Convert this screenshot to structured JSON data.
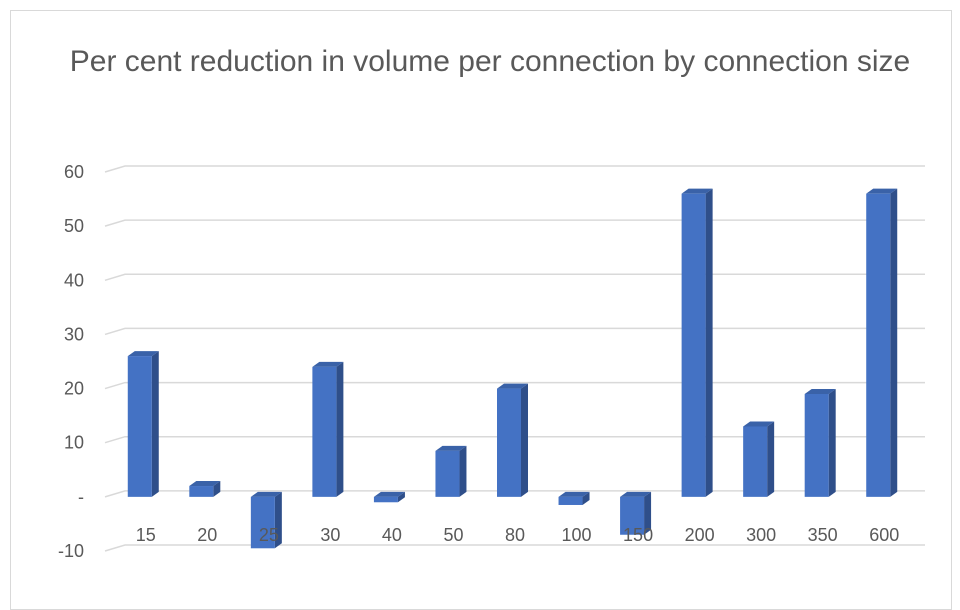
{
  "chart_data": {
    "type": "bar",
    "title": "Per cent reduction in volume per connection by connection size",
    "xlabel": "",
    "ylabel": "",
    "categories": [
      "15",
      "20",
      "25",
      "30",
      "40",
      "50",
      "80",
      "100",
      "150",
      "200",
      "300",
      "350",
      "600"
    ],
    "values": [
      26,
      2,
      -9.5,
      24,
      -1,
      8.5,
      20,
      -1.5,
      -7,
      56,
      13,
      19,
      56
    ],
    "ylim": [
      -10,
      60
    ],
    "yticks": [
      -10,
      0,
      10,
      20,
      30,
      40,
      50,
      60
    ],
    "ytick_labels": [
      "-10",
      "-",
      "10",
      "20",
      "30",
      "40",
      "50",
      "60"
    ],
    "grid": true,
    "legend": "none",
    "colors": {
      "bar_front": "#4472c4",
      "bar_side": "#2f4f8a",
      "bar_top": "#3a62a8",
      "grid": "#d9d9d9",
      "text": "#595959"
    }
  }
}
